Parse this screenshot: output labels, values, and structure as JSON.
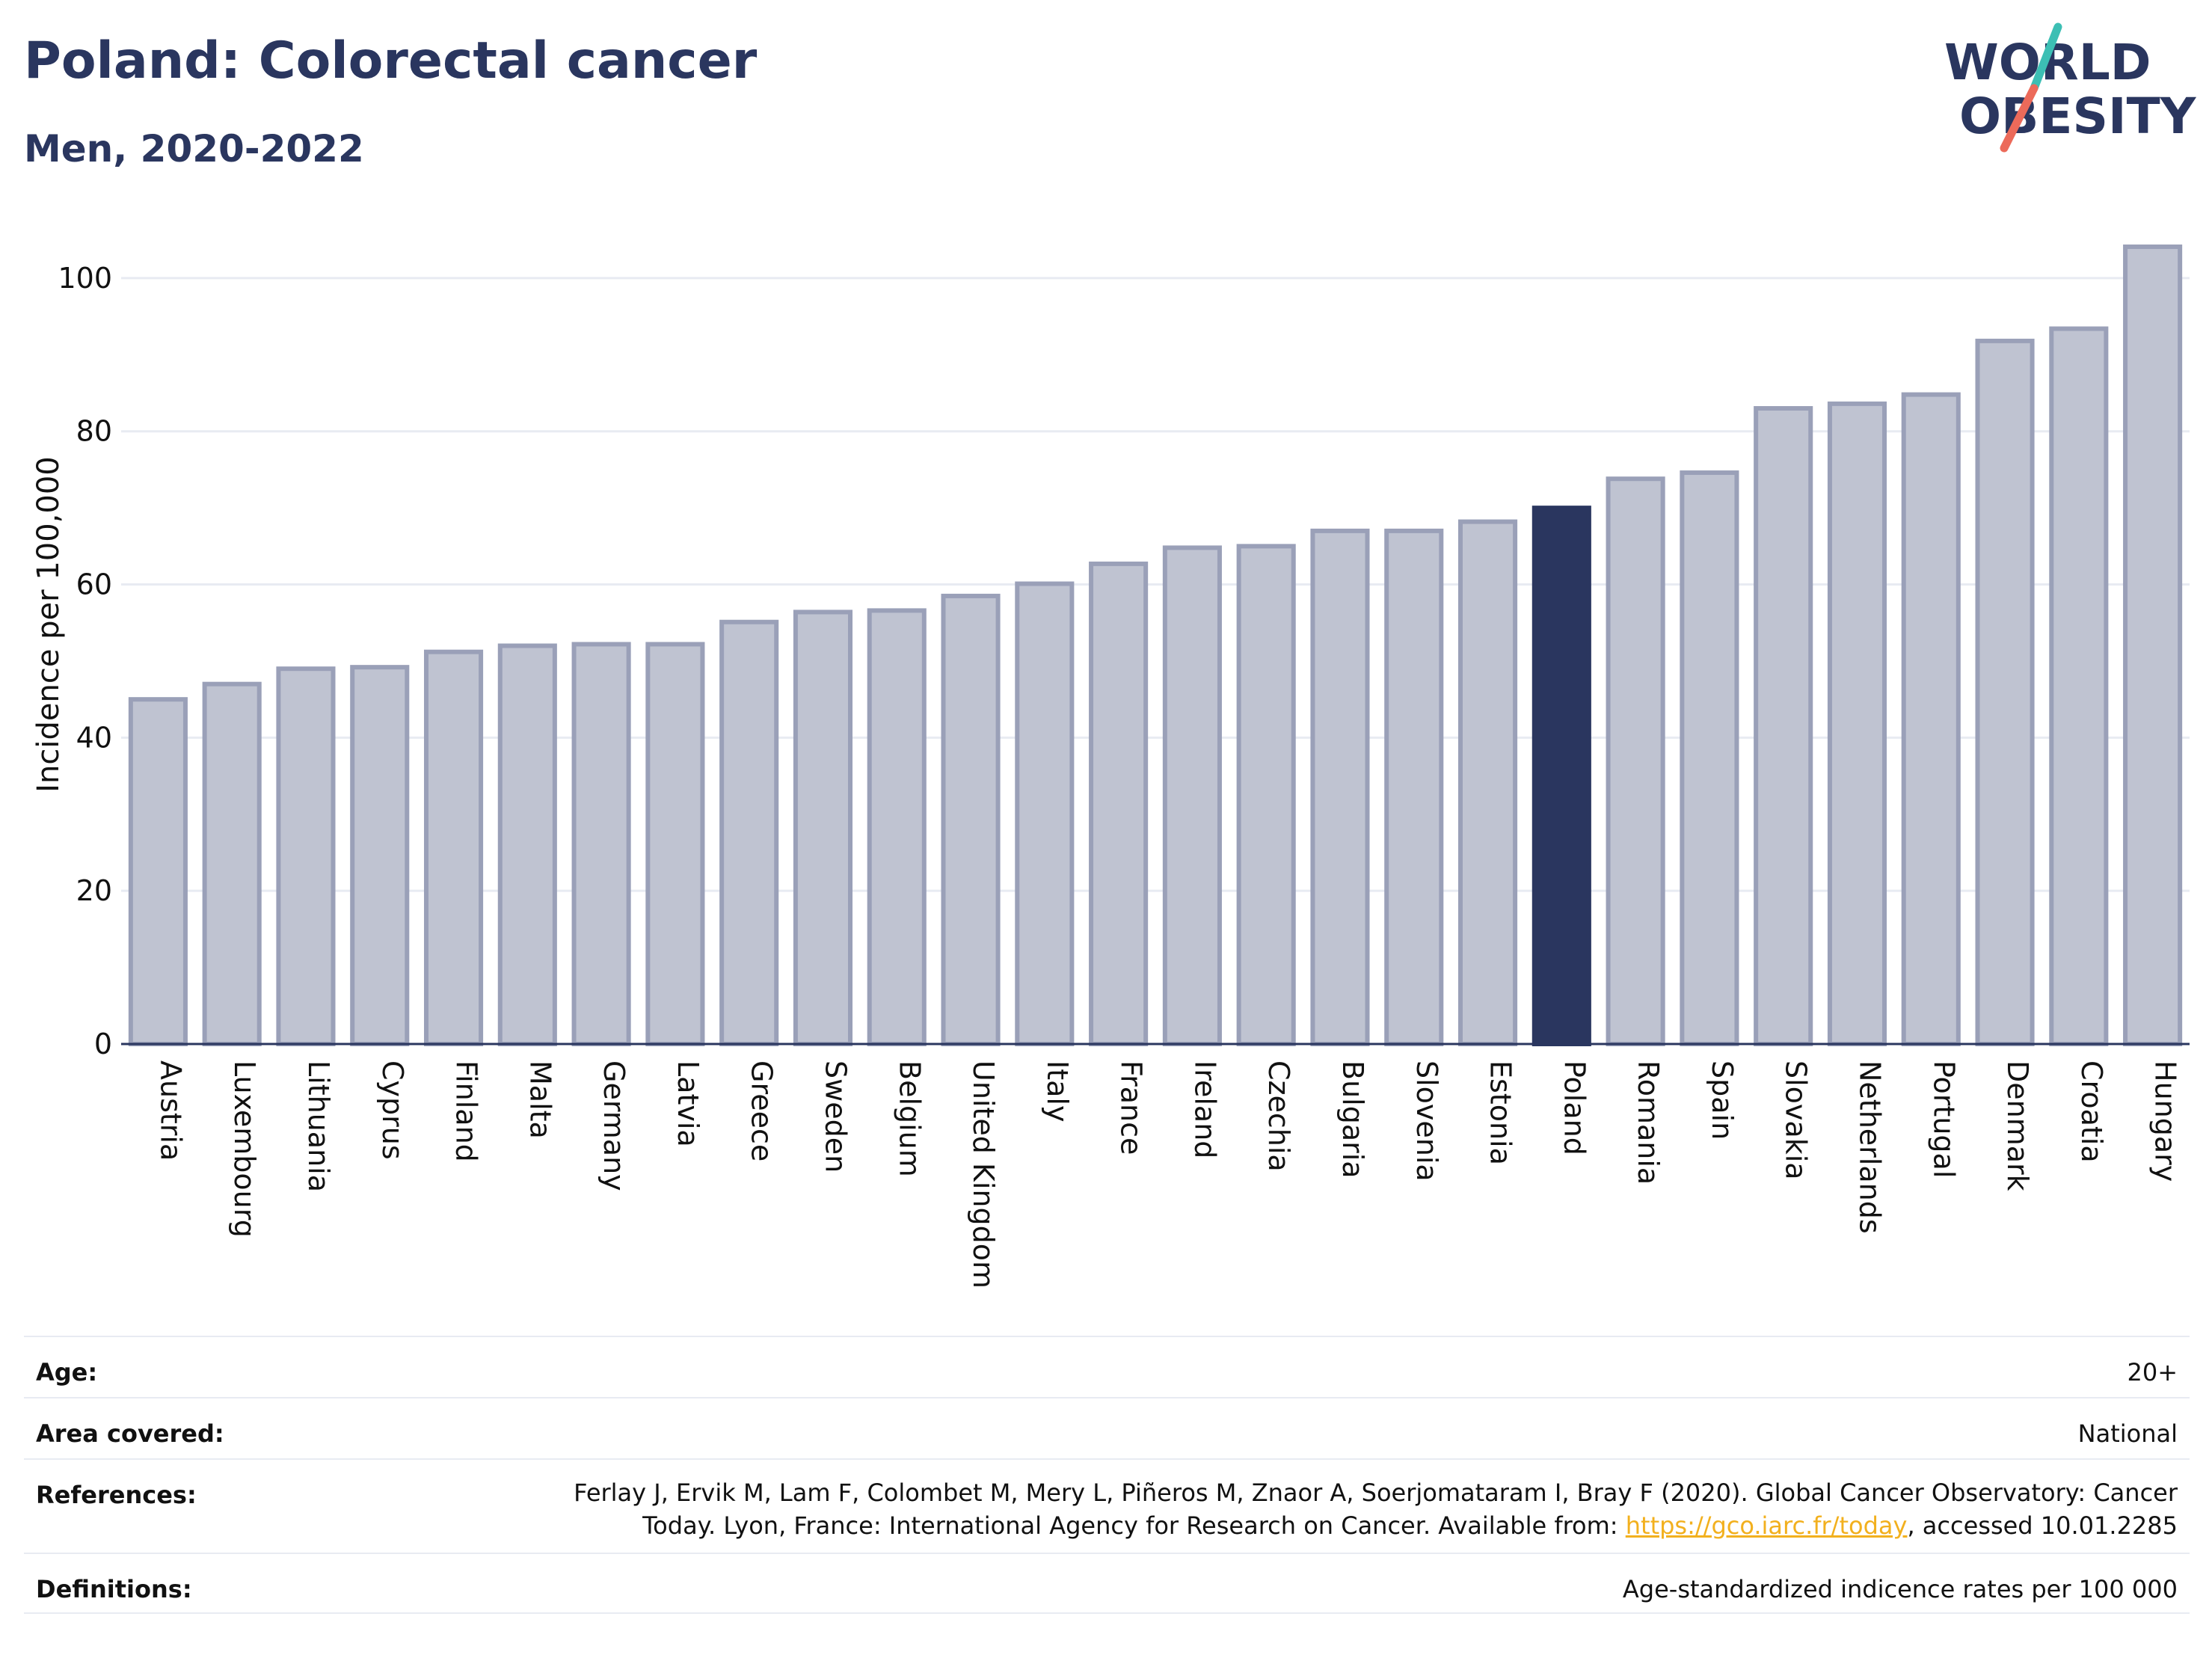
{
  "header": {
    "title": "Poland: Colorectal cancer",
    "subtitle": "Men, 2020-2022"
  },
  "logo": {
    "line1": "WORLD",
    "line2": "OBESITY",
    "slash_colors": [
      "#3cbfb4",
      "#ec6a5a"
    ]
  },
  "colors": {
    "bar": "#bfc3d1",
    "bar_stroke": "#9aa0b8",
    "highlight": "#2a365f",
    "grid": "#e8ebf2",
    "axis": "#2a365f",
    "text_dark": "#2a365f"
  },
  "chart_data": {
    "type": "bar",
    "ylabel": "Incidence per 100,000",
    "ylim": [
      0,
      108
    ],
    "yticks": [
      0,
      20,
      40,
      60,
      80,
      100
    ],
    "grid": true,
    "highlight": "Poland",
    "categories": [
      "Austria",
      "Luxembourg",
      "Lithuania",
      "Cyprus",
      "Finland",
      "Malta",
      "Germany",
      "Latvia",
      "Greece",
      "Sweden",
      "Belgium",
      "United Kingdom",
      "Italy",
      "France",
      "Ireland",
      "Czechia",
      "Bulgaria",
      "Slovenia",
      "Estonia",
      "Poland",
      "Romania",
      "Spain",
      "Slovakia",
      "Netherlands",
      "Portugal",
      "Denmark",
      "Croatia",
      "Hungary"
    ],
    "values": [
      45,
      47,
      49,
      49.2,
      51.2,
      52,
      52.2,
      52.2,
      55.1,
      56.4,
      56.6,
      58.5,
      60.1,
      62.7,
      64.8,
      65,
      67,
      67,
      68.2,
      70,
      73.8,
      74.6,
      83,
      83.6,
      84.8,
      91.8,
      93.4,
      104.1
    ]
  },
  "info": {
    "age_label": "Age:",
    "age_value": "20+",
    "area_label": "Area covered:",
    "area_value": "National",
    "references_label": "References:",
    "references_line1": "Ferlay J, Ervik M, Lam F, Colombet M, Mery L, Piñeros M, Znaor A, Soerjomataram I, Bray F (2020). Global Cancer Observatory: Cancer",
    "references_line2_prefix": "Today. Lyon, France: International Agency for Research on Cancer. Available from: ",
    "references_link": "https://gco.iarc.fr/today",
    "references_line2_suffix": ", accessed 10.01.2285",
    "definitions_label": "Definitions:",
    "definitions_value": "Age-standardized indicence rates per 100 000"
  }
}
